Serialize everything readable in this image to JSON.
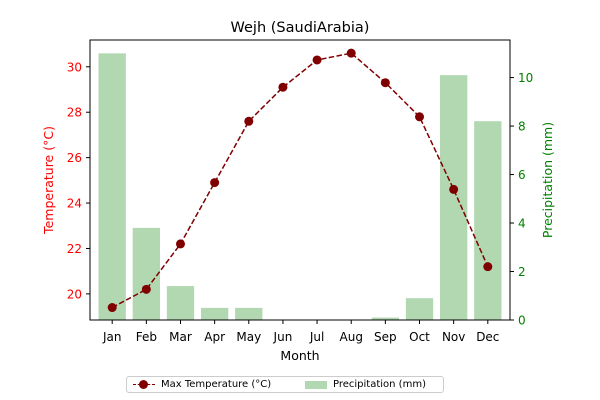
{
  "chart_data": {
    "type": "bar+line",
    "title": "Wejh (SaudiArabia)",
    "xlabel": "Month",
    "categories": [
      "Jan",
      "Feb",
      "Mar",
      "Apr",
      "May",
      "Jun",
      "Jul",
      "Aug",
      "Sep",
      "Oct",
      "Nov",
      "Dec"
    ],
    "series": [
      {
        "name": "Max Temperature (°C)",
        "type": "line",
        "axis": "left",
        "color": "#800000",
        "values": [
          19.4,
          20.2,
          22.2,
          24.9,
          27.6,
          29.1,
          30.3,
          30.6,
          29.3,
          27.8,
          24.6,
          21.2
        ]
      },
      {
        "name": "Precipitation (mm)",
        "type": "bar",
        "axis": "right",
        "color": "#b2d8b2",
        "values": [
          11.0,
          3.8,
          1.4,
          0.5,
          0.5,
          0.0,
          0.0,
          0.0,
          0.1,
          0.9,
          10.1,
          8.2
        ]
      }
    ],
    "y_left": {
      "label": "Temperature (°C)",
      "color": "#ff0000",
      "range": [
        18.85,
        31.18
      ],
      "ticks": [
        20,
        22,
        24,
        26,
        28,
        30
      ]
    },
    "y_right": {
      "label": "Precipitation (mm)",
      "color": "#008000",
      "range": [
        0,
        11.55
      ],
      "ticks": [
        0,
        2,
        4,
        6,
        8,
        10
      ]
    },
    "grid": false,
    "legend": "bottom-center"
  }
}
